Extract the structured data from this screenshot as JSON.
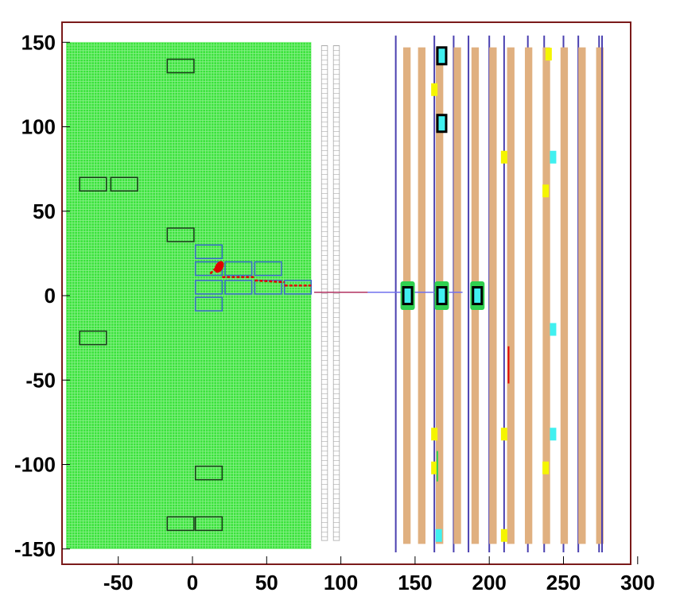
{
  "chart_data": {
    "type": "diagram",
    "xlim": [
      -90,
      300
    ],
    "ylim": [
      -152,
      154
    ],
    "x_ticks": [
      -50,
      0,
      50,
      100,
      150,
      200,
      250,
      300
    ],
    "y_ticks": [
      150,
      100,
      50,
      0,
      -50,
      -100,
      -150
    ],
    "x_tick_labels": [
      "-50",
      "0",
      "50",
      "100",
      "150",
      "200",
      "250",
      "300"
    ],
    "y_tick_labels": [
      "150",
      "100",
      "50",
      "0",
      "-50",
      "-100",
      "-150"
    ],
    "colors": {
      "frame": "#7a1a1a",
      "calorimeter_fill": "#39e23a",
      "calorimeter_grid": "#8cf08c",
      "box_dark": "#1a3a1a",
      "box_blue": "#3a6acc",
      "track_red": "#e00000",
      "beam_line": "#7070ee",
      "station_tan": "#e0b080",
      "station_blue": "#4a40b0",
      "hit_yellow": "#f5f500",
      "hit_cyan": "#40f0f0",
      "hit_green": "#30d050"
    },
    "calorimeter": {
      "x_range": [
        -85,
        80
      ],
      "y_range": [
        -150,
        150
      ]
    },
    "dark_boxes": [
      {
        "x": -17,
        "y": 132,
        "w": 18,
        "h": 8
      },
      {
        "x": -76,
        "y": 62,
        "w": 18,
        "h": 8
      },
      {
        "x": -55,
        "y": 62,
        "w": 18,
        "h": 8
      },
      {
        "x": -17,
        "y": 32,
        "w": 18,
        "h": 8
      },
      {
        "x": -76,
        "y": -29,
        "w": 18,
        "h": 8
      },
      {
        "x": 2,
        "y": -109,
        "w": 18,
        "h": 8
      },
      {
        "x": -17,
        "y": -139,
        "w": 18,
        "h": 8
      },
      {
        "x": 2,
        "y": -139,
        "w": 18,
        "h": 8
      }
    ],
    "blue_boxes": [
      {
        "x": 2,
        "y": 22,
        "w": 18,
        "h": 8
      },
      {
        "x": 2,
        "y": 12,
        "w": 18,
        "h": 8
      },
      {
        "x": 2,
        "y": 1,
        "w": 18,
        "h": 8
      },
      {
        "x": 2,
        "y": -9,
        "w": 18,
        "h": 8
      },
      {
        "x": 22,
        "y": 12,
        "w": 18,
        "h": 8
      },
      {
        "x": 22,
        "y": 1,
        "w": 18,
        "h": 8
      },
      {
        "x": 42,
        "y": 12,
        "w": 18,
        "h": 8
      },
      {
        "x": 42,
        "y": 1,
        "w": 18,
        "h": 8
      },
      {
        "x": 62,
        "y": 1,
        "w": 18,
        "h": 8
      }
    ],
    "tracks": [
      {
        "x1": 12,
        "y1": 13,
        "x2": 20,
        "y2": 20
      },
      {
        "x1": 20,
        "y1": 11,
        "x2": 42,
        "y2": 11
      },
      {
        "x1": 42,
        "y1": 9,
        "x2": 62,
        "y2": 8
      },
      {
        "x1": 62,
        "y1": 6,
        "x2": 80,
        "y2": 6
      }
    ],
    "strip_columns": [
      {
        "x": 87,
        "w": 4
      },
      {
        "x": 95,
        "w": 4
      }
    ],
    "beam_line": {
      "x1": 82,
      "x2": 182,
      "y": 2
    },
    "stations": [
      {
        "tan": [
          142,
          147
        ],
        "blue": 137
      },
      {
        "tan": [
          152,
          157
        ],
        "blue": 163
      },
      {
        "tan": [
          164,
          169
        ],
        "blue": 176
      },
      {
        "tan": [
          176,
          181
        ],
        "blue": 186
      },
      {
        "tan": [
          188,
          193
        ],
        "blue": 200
      },
      {
        "tan": [
          200,
          205
        ],
        "blue": 210
      },
      {
        "tan": [
          212,
          217
        ],
        "blue": 226
      },
      {
        "tan": [
          224,
          229
        ],
        "blue": 237
      },
      {
        "tan": [
          236,
          241
        ],
        "blue": 250
      },
      {
        "tan": [
          248,
          253
        ],
        "blue": 260
      },
      {
        "tan": [
          260,
          265
        ],
        "blue": 274
      },
      {
        "tan": [
          272,
          277
        ],
        "blue": 276
      }
    ],
    "cyan_modules": [
      {
        "x": 168,
        "y": 142
      },
      {
        "x": 168,
        "y": 102
      },
      {
        "x": 145,
        "y": 0
      },
      {
        "x": 168,
        "y": 0
      },
      {
        "x": 192,
        "y": 0
      }
    ],
    "yellow_hits": [
      {
        "x": 240,
        "y": 143
      },
      {
        "x": 163,
        "y": 122
      },
      {
        "x": 210,
        "y": 82
      },
      {
        "x": 238,
        "y": 62
      },
      {
        "x": 163,
        "y": -82
      },
      {
        "x": 210,
        "y": -82
      },
      {
        "x": 163,
        "y": -102
      },
      {
        "x": 238,
        "y": -102
      },
      {
        "x": 210,
        "y": -142
      }
    ],
    "cyan_hits": [
      {
        "x": 243,
        "y": 82
      },
      {
        "x": 243,
        "y": -20
      },
      {
        "x": 243,
        "y": -82
      },
      {
        "x": 166,
        "y": -142
      }
    ],
    "red_segment": {
      "x": 213,
      "y1": -30,
      "y2": -52
    },
    "green_segment": {
      "x": 165,
      "y1": -92,
      "y2": -110
    }
  }
}
